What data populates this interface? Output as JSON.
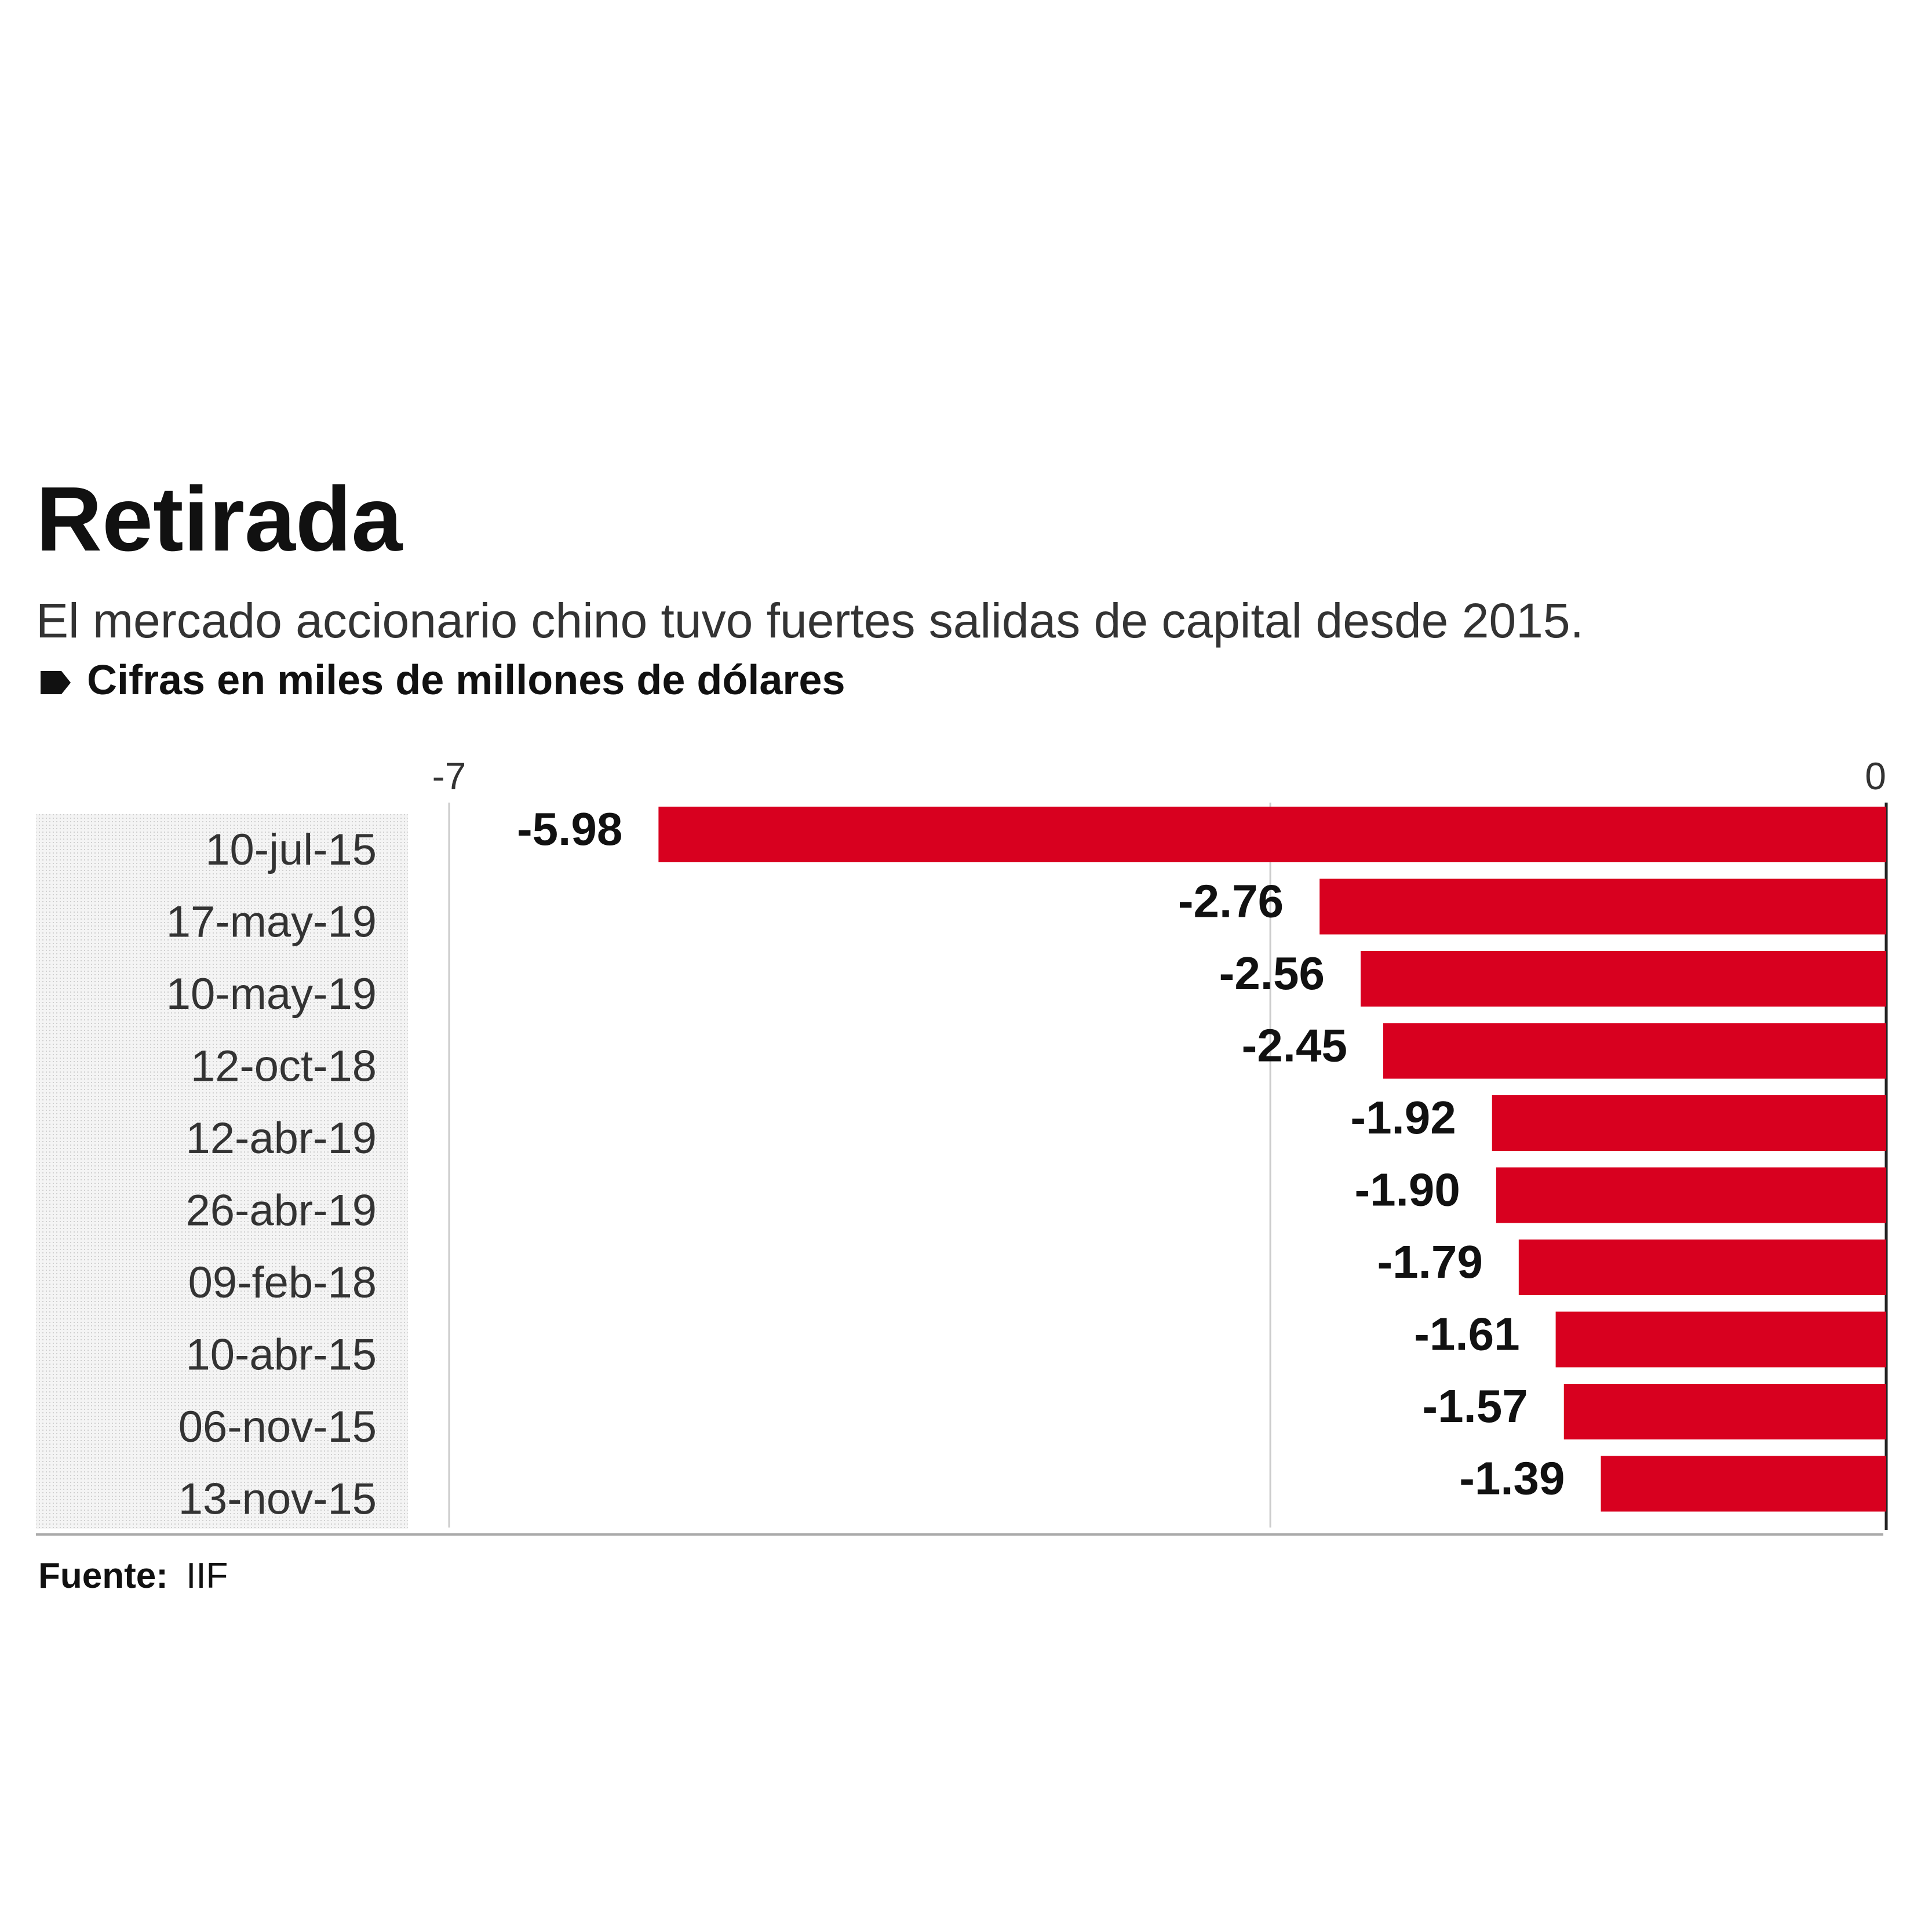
{
  "title": "Retirada",
  "subtitle": "El mercado accionario chino tuvo fuertes salidas de capital desde 2015.",
  "unit_note": "Cifras en miles de millones de dólares",
  "source_label": "Fuente:",
  "source_value": "IIF",
  "colors": {
    "bar": "#d8001f",
    "text": "#111111",
    "axis_label": "#333333",
    "gridline": "#cccccc",
    "zero_line": "#222222",
    "label_panel": "#e8e8e8"
  },
  "icons": {
    "unit_marker": "tag-icon"
  },
  "chart_data": {
    "type": "bar",
    "orientation": "horizontal",
    "title": "Retirada",
    "subtitle": "El mercado accionario chino tuvo fuertes salidas de capital desde 2015.",
    "xlim": [
      -7,
      0
    ],
    "x_ticks": [
      -7,
      0
    ],
    "x_tick_labels": [
      "-7",
      "0"
    ],
    "gridlines_at": [
      -7,
      -3,
      0
    ],
    "grid": true,
    "categories": [
      "10-jul-15",
      "17-may-19",
      "10-may-19",
      "12-oct-18",
      "12-abr-19",
      "26-abr-19",
      "09-feb-18",
      "10-abr-15",
      "06-nov-15",
      "13-nov-15"
    ],
    "values": [
      -5.98,
      -2.76,
      -2.56,
      -2.45,
      -1.92,
      -1.9,
      -1.79,
      -1.61,
      -1.57,
      -1.39
    ],
    "value_labels": [
      "-5.98",
      "-2.76",
      "-2.56",
      "-2.45",
      "-1.92",
      "-1.90",
      "-1.79",
      "-1.61",
      "-1.57",
      "-1.39"
    ]
  }
}
